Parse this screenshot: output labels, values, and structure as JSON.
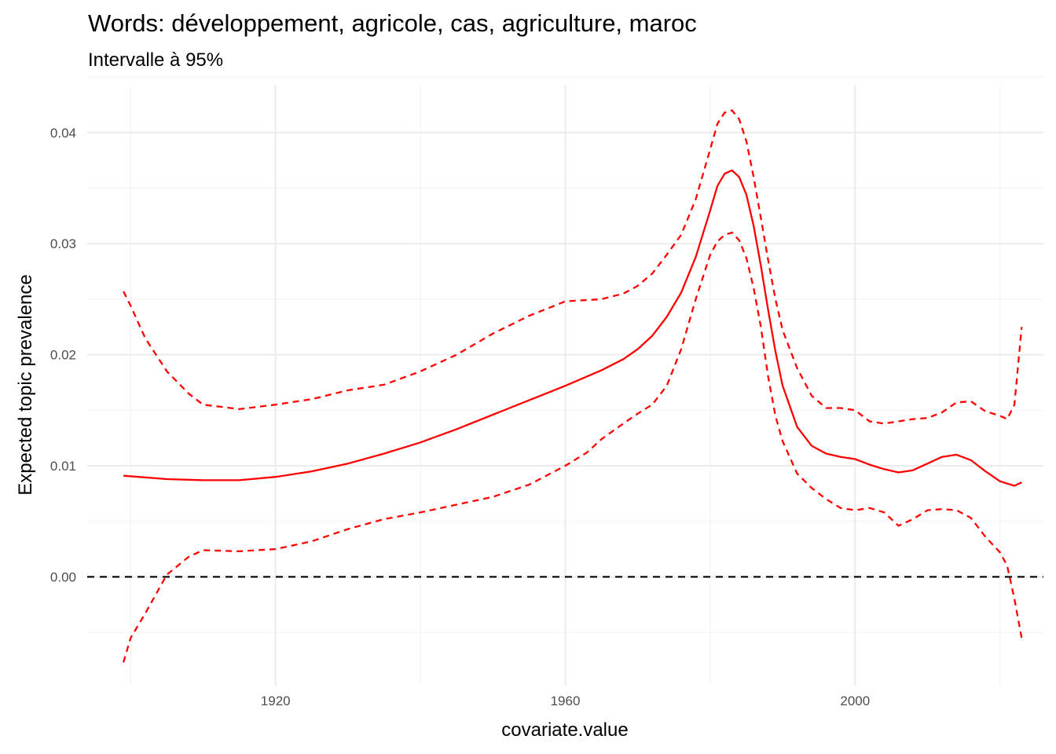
{
  "chart_data": {
    "type": "line",
    "title": "Words: développement, agricole, cas, agriculture, maroc",
    "subtitle": "Intervalle à 95%",
    "xlabel": "covariate.value",
    "ylabel": "Expected topic prevalence",
    "xlim": [
      1894,
      2026
    ],
    "ylim": [
      -0.0098,
      0.0443
    ],
    "x_ticks": [
      1920,
      1960,
      2000
    ],
    "x_tick_labels": [
      "1920",
      "1960",
      "2000"
    ],
    "y_ticks": [
      0,
      0.01,
      0.02,
      0.03,
      0.04
    ],
    "y_tick_labels": [
      "0.00",
      "0.01",
      "0.02",
      "0.03",
      "0.04"
    ],
    "grid": true,
    "legend": "none",
    "reference_line": {
      "y": 0,
      "style": "dashed",
      "color": "#000000"
    },
    "colors": {
      "series": "#ff0000",
      "reference": "#000000",
      "grid": "#ebebeb"
    },
    "series": [
      {
        "role": "estimate",
        "style": "solid",
        "x": [
          1899,
          1905,
          1910,
          1915,
          1920,
          1925,
          1930,
          1935,
          1940,
          1945,
          1950,
          1955,
          1960,
          1965,
          1968,
          1970,
          1972,
          1974,
          1976,
          1978,
          1980,
          1981,
          1982,
          1983,
          1984,
          1985,
          1986,
          1987,
          1988,
          1989,
          1990,
          1992,
          1994,
          1996,
          1998,
          2000,
          2002,
          2004,
          2006,
          2008,
          2010,
          2012,
          2014,
          2016,
          2018,
          2020,
          2022,
          2023
        ],
        "y": [
          0.0091,
          0.0088,
          0.0087,
          0.0087,
          0.009,
          0.0095,
          0.0102,
          0.0111,
          0.0121,
          0.0133,
          0.0146,
          0.0159,
          0.0172,
          0.0186,
          0.0196,
          0.0205,
          0.0217,
          0.0234,
          0.0256,
          0.0288,
          0.033,
          0.0352,
          0.0363,
          0.0366,
          0.036,
          0.0344,
          0.0316,
          0.028,
          0.024,
          0.0203,
          0.0172,
          0.0135,
          0.0118,
          0.0111,
          0.0108,
          0.0106,
          0.0101,
          0.0097,
          0.0094,
          0.0096,
          0.0102,
          0.0108,
          0.011,
          0.0105,
          0.0095,
          0.0086,
          0.0082,
          0.0085
        ]
      },
      {
        "role": "upper-95",
        "style": "dashed",
        "x": [
          1899,
          1900,
          1902,
          1905,
          1908,
          1910,
          1915,
          1920,
          1925,
          1930,
          1935,
          1940,
          1945,
          1950,
          1955,
          1960,
          1965,
          1968,
          1970,
          1972,
          1974,
          1976,
          1978,
          1980,
          1981,
          1982,
          1983,
          1984,
          1985,
          1986,
          1987,
          1988,
          1989,
          1990,
          1992,
          1994,
          1996,
          1998,
          2000,
          2002,
          2004,
          2006,
          2008,
          2010,
          2012,
          2014,
          2016,
          2018,
          2020,
          2021,
          2022,
          2023
        ],
        "y": [
          0.0257,
          0.0244,
          0.0215,
          0.0185,
          0.0165,
          0.0155,
          0.0151,
          0.0155,
          0.016,
          0.0168,
          0.0173,
          0.0185,
          0.02,
          0.0219,
          0.0235,
          0.0248,
          0.025,
          0.0255,
          0.0262,
          0.0273,
          0.029,
          0.0308,
          0.034,
          0.0385,
          0.0408,
          0.0418,
          0.042,
          0.0412,
          0.0392,
          0.036,
          0.0323,
          0.0285,
          0.025,
          0.0222,
          0.0188,
          0.0163,
          0.0152,
          0.0152,
          0.015,
          0.014,
          0.0138,
          0.014,
          0.0142,
          0.0143,
          0.0148,
          0.0157,
          0.0158,
          0.0149,
          0.0145,
          0.0142,
          0.0155,
          0.0225
        ]
      },
      {
        "role": "lower-95",
        "style": "dashed",
        "x": [
          1899,
          1900,
          1902,
          1905,
          1908,
          1910,
          1915,
          1920,
          1925,
          1930,
          1935,
          1940,
          1945,
          1950,
          1955,
          1960,
          1963,
          1965,
          1968,
          1970,
          1972,
          1974,
          1976,
          1978,
          1980,
          1981,
          1982,
          1983,
          1984,
          1985,
          1986,
          1987,
          1988,
          1989,
          1990,
          1992,
          1994,
          1996,
          1998,
          2000,
          2002,
          2004,
          2006,
          2008,
          2010,
          2012,
          2014,
          2016,
          2018,
          2020,
          2021,
          2022,
          2023
        ],
        "y": [
          -0.0077,
          -0.0055,
          -0.0033,
          0.0002,
          0.0018,
          0.0024,
          0.0023,
          0.0025,
          0.0032,
          0.0043,
          0.0052,
          0.0058,
          0.0065,
          0.0072,
          0.0083,
          0.01,
          0.0112,
          0.0124,
          0.0138,
          0.0147,
          0.0155,
          0.0172,
          0.0205,
          0.025,
          0.029,
          0.0302,
          0.0308,
          0.031,
          0.0303,
          0.0287,
          0.026,
          0.0225,
          0.018,
          0.0145,
          0.0122,
          0.0093,
          0.008,
          0.007,
          0.0062,
          0.006,
          0.0062,
          0.0058,
          0.0046,
          0.0052,
          0.006,
          0.0061,
          0.006,
          0.0053,
          0.0036,
          0.0022,
          0.001,
          -0.002,
          -0.0055
        ]
      }
    ]
  }
}
